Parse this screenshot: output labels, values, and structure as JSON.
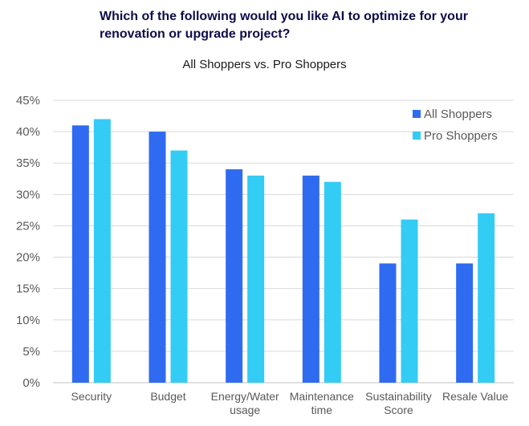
{
  "chart_data": {
    "type": "bar",
    "title": "Which of the following would you like AI to optimize for your renovation or upgrade project?",
    "subtitle": "All Shoppers vs. Pro Shoppers",
    "categories": [
      "Security",
      "Budget",
      "Energy/Water usage",
      "Maintenance time",
      "Sustainability Score",
      "Resale Value"
    ],
    "category_lines": [
      [
        "Security"
      ],
      [
        "Budget"
      ],
      [
        "Energy/Water",
        "usage"
      ],
      [
        "Maintenance",
        "time"
      ],
      [
        "Sustainability",
        "Score"
      ],
      [
        "Resale Value"
      ]
    ],
    "series": [
      {
        "name": "All Shoppers",
        "color": "#2f6bf0",
        "values": [
          41,
          40,
          34,
          33,
          19,
          19
        ]
      },
      {
        "name": "Pro Shoppers",
        "color": "#33ccf5",
        "values": [
          42,
          37,
          33,
          32,
          26,
          27
        ]
      }
    ],
    "y_ticks": [
      "0%",
      "5%",
      "10%",
      "15%",
      "20%",
      "25%",
      "30%",
      "35%",
      "40%",
      "45%"
    ],
    "ylim": [
      0,
      45
    ],
    "y_unit": "%",
    "grid": true,
    "legend_position": "top-right"
  }
}
